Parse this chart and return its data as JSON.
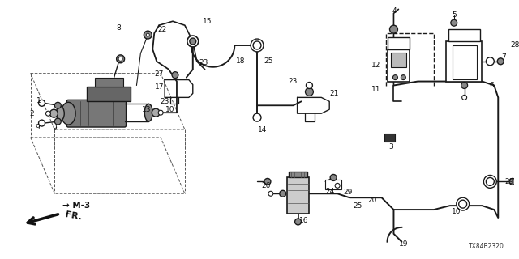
{
  "bg_color": "#ffffff",
  "line_color": "#1a1a1a",
  "diagram_code": "TX84B2320",
  "lw_main": 1.4,
  "lw_thin": 0.8,
  "lw_thick": 2.0
}
